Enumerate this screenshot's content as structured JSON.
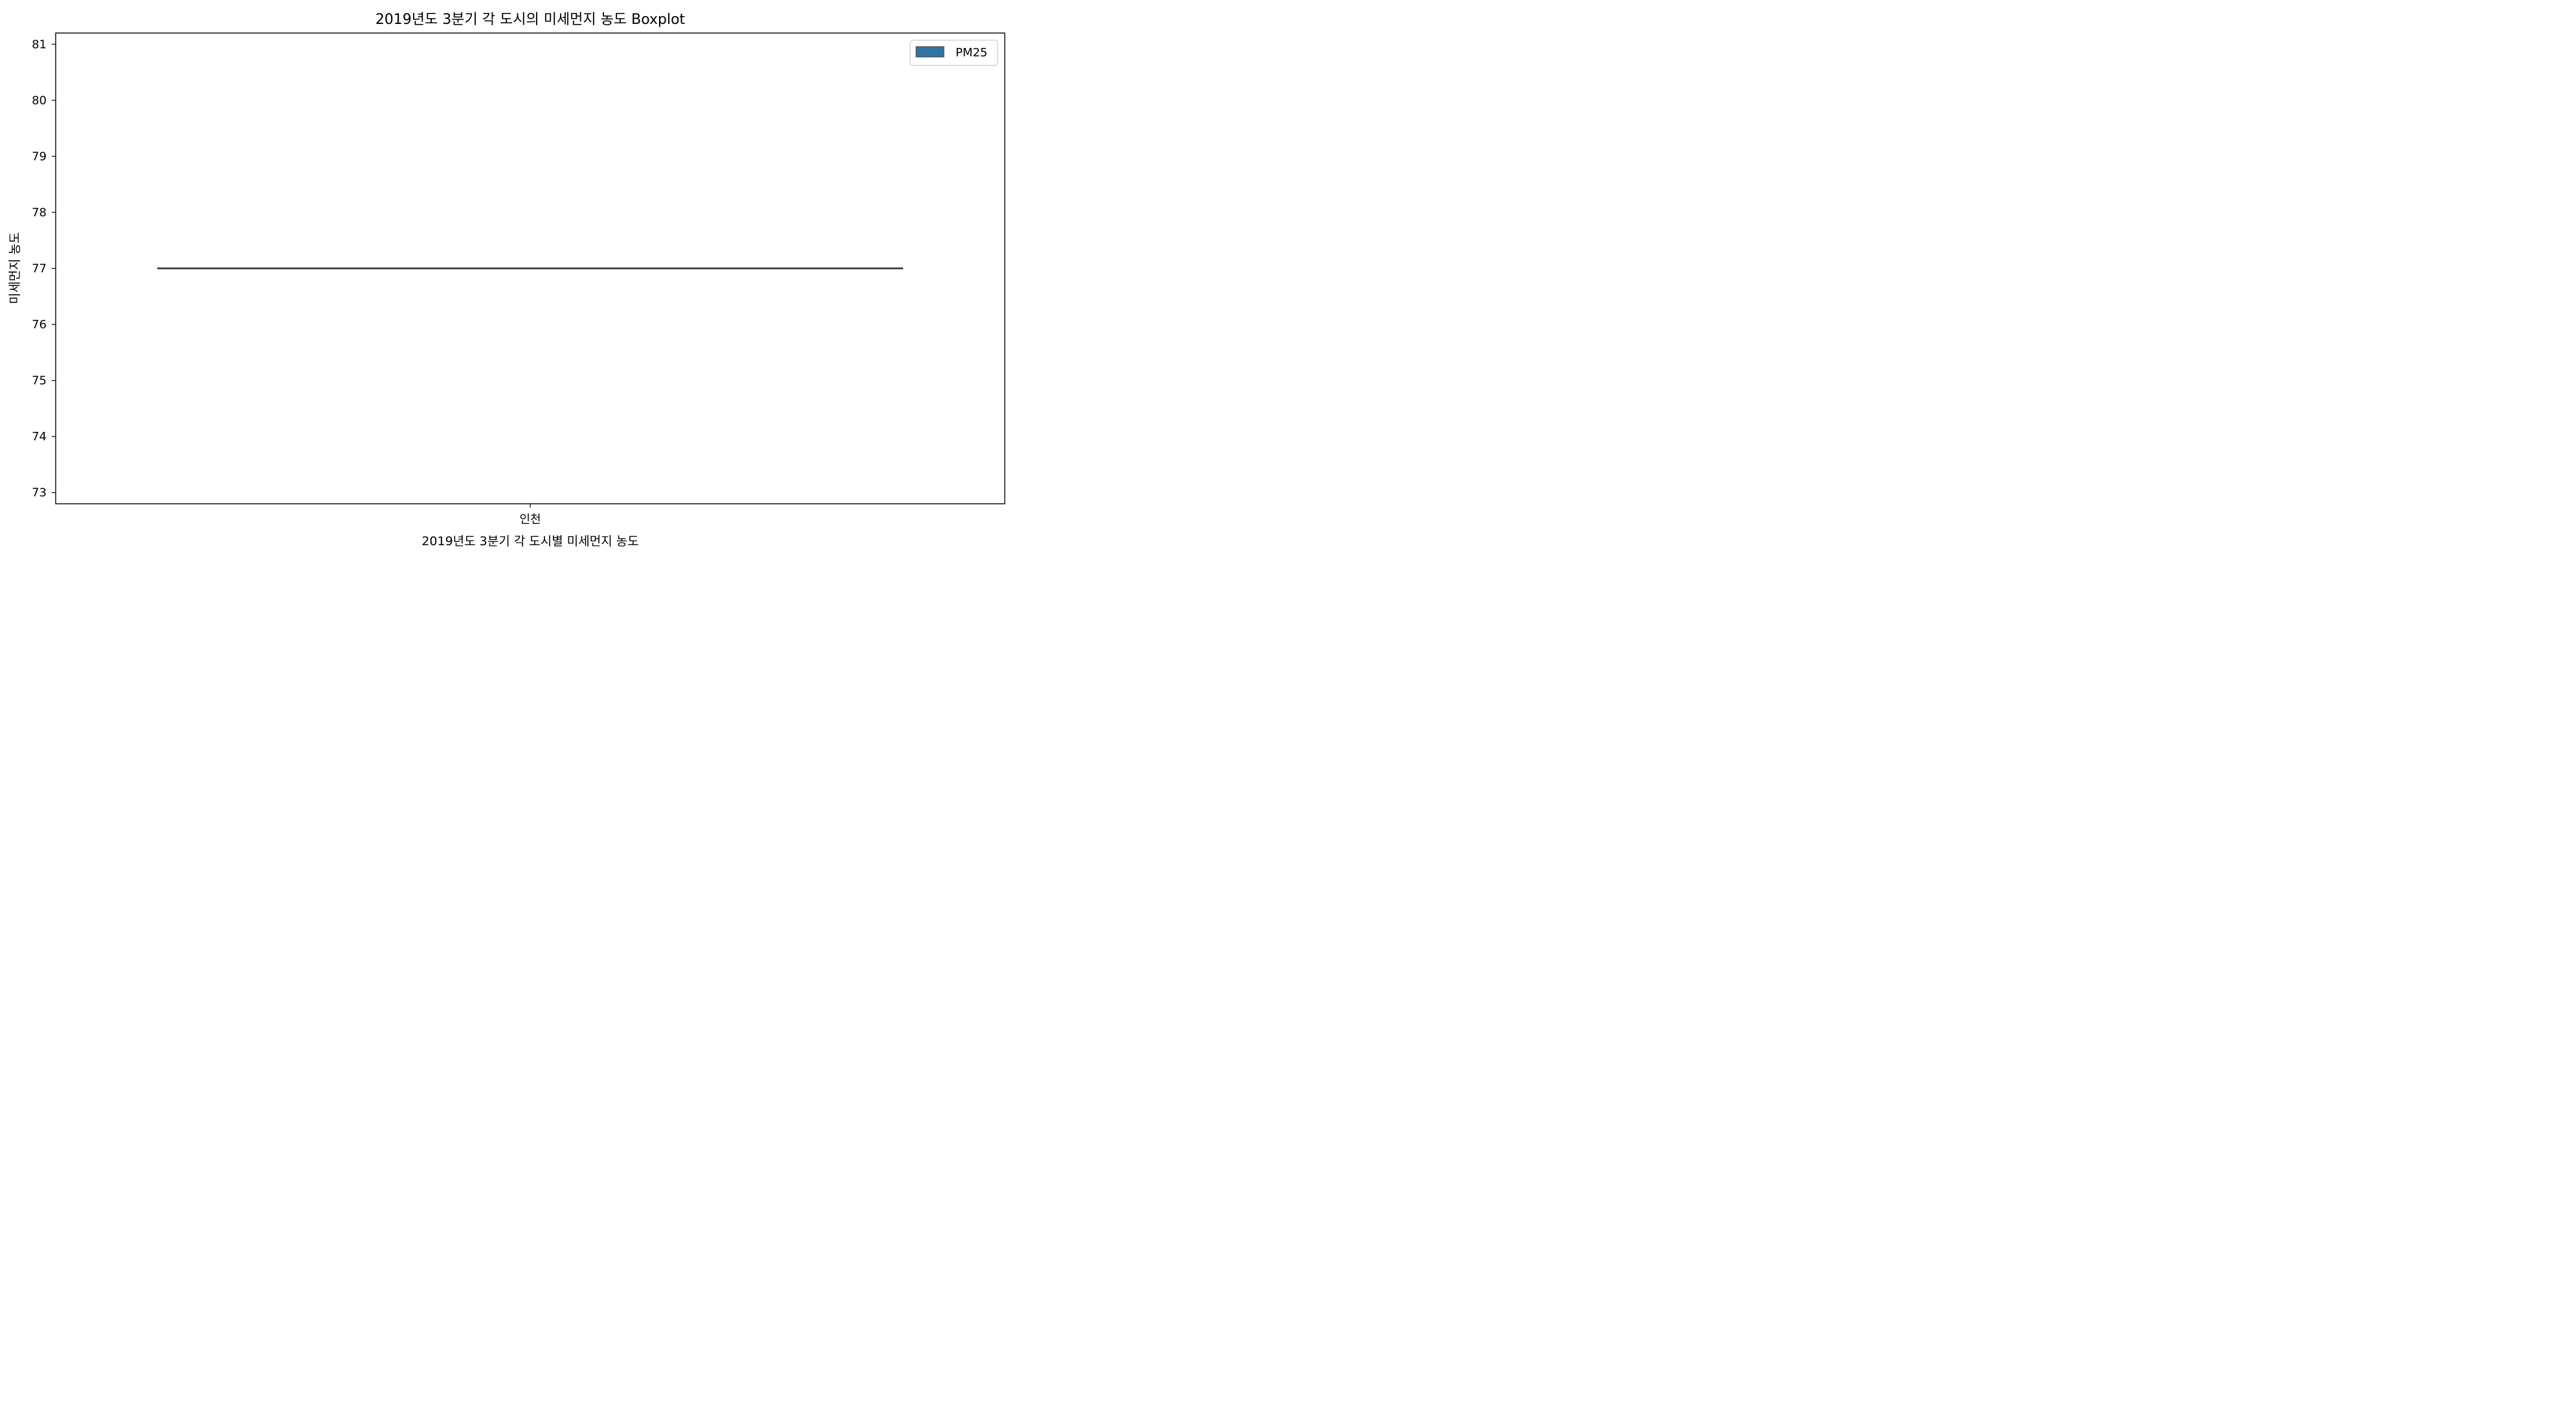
{
  "chart_data": {
    "type": "box",
    "title": "2019년도 3분기 각 도시의 미세먼지 농도 Boxplot",
    "xlabel": "2019년도 3분기 각 도시별 미세먼지 농도",
    "ylabel": "미세먼지 농도",
    "categories": [
      "인천"
    ],
    "series": [
      {
        "name": "PM25",
        "color": "#3274a1",
        "boxes": [
          {
            "category": "인천",
            "min": 77,
            "q1": 77,
            "median": 77,
            "q3": 77,
            "max": 77
          }
        ]
      }
    ],
    "ylim": [
      72.8,
      81.2
    ],
    "yticks": [
      73,
      74,
      75,
      76,
      77,
      78,
      79,
      80,
      81
    ],
    "grid": false,
    "legend": {
      "position": "top-right",
      "entries": [
        "PM25"
      ]
    }
  }
}
